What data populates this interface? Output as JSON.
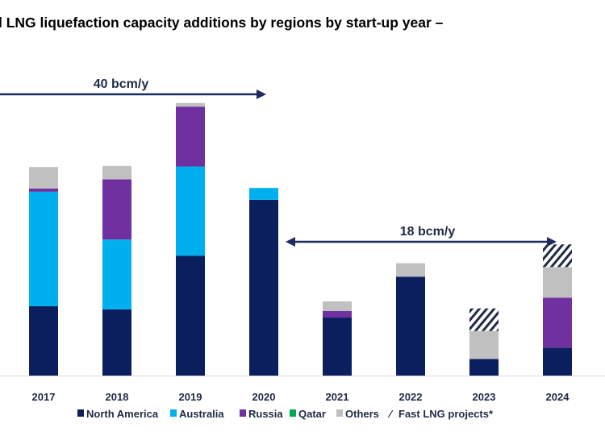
{
  "chart_data": {
    "type": "bar",
    "stacked": true,
    "title": "l LNG liquefaction capacity additions by regions by start-up year –",
    "categories": [
      "2017",
      "2018",
      "2019",
      "2020",
      "2021",
      "2022",
      "2023",
      "2024"
    ],
    "series": [
      {
        "name": "North America",
        "color": "#0b1f5e",
        "values": [
          12.9,
          12.3,
          22.3,
          32.7,
          10.8,
          18.4,
          3.1,
          5.2
        ]
      },
      {
        "name": "Australia",
        "color": "#00b0ee",
        "values": [
          21.3,
          13.0,
          16.6,
          2.2,
          0,
          0,
          0,
          0
        ]
      },
      {
        "name": "Russia",
        "color": "#7030a0",
        "values": [
          0.6,
          11.2,
          11.1,
          0,
          1.2,
          0,
          0,
          9.3
        ]
      },
      {
        "name": "Qatar",
        "color": "#00a651",
        "values": [
          0,
          0,
          0,
          0,
          0,
          0,
          0,
          0
        ]
      },
      {
        "name": "Others",
        "color": "#c0c0c0",
        "values": [
          4.0,
          2.5,
          0.7,
          0,
          1.8,
          2.5,
          5.2,
          5.7
        ]
      },
      {
        "name": "Fast LNG projects*",
        "color": "#1f2a44",
        "pattern": "hatched",
        "values": [
          0,
          0,
          0,
          0,
          0,
          0,
          4.2,
          4.2
        ]
      }
    ],
    "unit": "bcm",
    "annotations": [
      {
        "text": "40 bcm/y",
        "span": [
          "2017",
          "2020"
        ],
        "arrow": "right"
      },
      {
        "text": "18 bcm/y",
        "span": [
          "2021",
          "2024"
        ],
        "arrow": "both"
      }
    ],
    "grid": false,
    "y_axis_shown": false,
    "legend": "bottom"
  }
}
